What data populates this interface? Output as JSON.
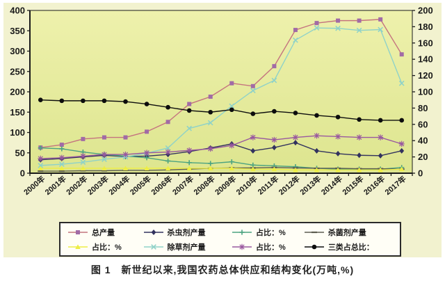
{
  "figure": {
    "caption": "图 1　新世纪以来,我国农药总体供应和结构变化(万吨,%)"
  },
  "chart_data": {
    "type": "line",
    "title": "",
    "categories": [
      "2000年",
      "2001年",
      "2002年",
      "2003年",
      "2004年",
      "2005年",
      "2006年",
      "2007年",
      "2008年",
      "2009年",
      "2010年",
      "2011年",
      "2012年",
      "2013年",
      "2014年",
      "2015年",
      "2016年",
      "2017年"
    ],
    "left_axis": {
      "label": "万吨",
      "min": 0,
      "max": 400,
      "step": 50,
      "ticks": [
        0,
        50,
        100,
        150,
        200,
        250,
        300,
        350,
        400
      ]
    },
    "right_axis": {
      "label": "%",
      "min": 0,
      "max": 200,
      "step": 20,
      "ticks": [
        0,
        20,
        40,
        60,
        80,
        100,
        120,
        140,
        160,
        180,
        200
      ]
    },
    "legend": {
      "position": "bottom",
      "rows": 2,
      "columns": 4,
      "order": "row-major"
    },
    "grid": "off",
    "colors": {
      "plot_bg_top": "#eef1ac",
      "plot_bg_bottom": "#dde58f",
      "panel_bg": "#f2f2cf",
      "axis": "#1a1a1a"
    },
    "series": [
      {
        "name": "总产量",
        "marker": "square",
        "axis": "left",
        "color": "#c4737f",
        "marker_color": "#a16ba6",
        "values": [
          63,
          70,
          84,
          88,
          88,
          102,
          126,
          170,
          188,
          221,
          214,
          263,
          352,
          369,
          375,
          375,
          378,
          292
        ]
      },
      {
        "name": "杀虫剂产量",
        "marker": "diamond",
        "axis": "left",
        "color": "#32325e",
        "marker_color": "#32325e",
        "values": [
          33,
          36,
          40,
          44,
          41,
          42,
          46,
          53,
          62,
          72,
          55,
          63,
          75,
          55,
          48,
          44,
          43,
          55
        ]
      },
      {
        "name": "占比：%",
        "marker": "plus",
        "axis": "right",
        "color": "#4ba381",
        "marker_color": "#4ba381",
        "values": [
          31,
          30,
          26,
          23,
          21,
          19,
          15,
          13,
          12,
          14,
          10,
          9,
          8,
          6,
          5,
          5,
          5,
          7
        ]
      },
      {
        "name": "杀菌剂产量",
        "marker": "dash",
        "axis": "left",
        "color": "#5c5c50",
        "marker_color": "#5c5c50",
        "values": [
          5,
          5,
          6,
          6,
          7,
          7,
          8,
          10,
          12,
          13,
          13,
          14,
          13,
          12,
          12,
          11,
          11,
          10
        ]
      },
      {
        "name": "占比：%",
        "marker": "triangle",
        "axis": "right",
        "color": "#eded45",
        "marker_color": "#eded45",
        "values": [
          6,
          6,
          6,
          6,
          6,
          6,
          6,
          6,
          6,
          6,
          5,
          5,
          4,
          4,
          4,
          4,
          4,
          5
        ]
      },
      {
        "name": "除草剂产量",
        "marker": "x",
        "axis": "left",
        "color": "#8fd2c8",
        "marker_color": "#8fd2c8",
        "values": [
          19,
          22,
          27,
          34,
          40,
          49,
          62,
          110,
          124,
          165,
          203,
          228,
          327,
          357,
          356,
          351,
          353,
          221
        ]
      },
      {
        "name": "占比：%",
        "marker": "asterisk",
        "axis": "right",
        "color": "#99589f",
        "marker_color": "#99589f",
        "values": [
          18,
          19,
          21,
          23,
          23,
          25,
          26,
          28,
          30,
          34,
          44,
          41,
          44,
          46,
          45,
          44,
          44,
          36
        ]
      },
      {
        "name": "三类占总比：",
        "marker": "circle",
        "axis": "right",
        "color": "#0d0d0d",
        "marker_color": "#0d0d0d",
        "values": [
          90,
          89,
          89,
          89,
          88,
          85,
          81,
          77,
          75,
          78,
          73,
          76,
          74,
          71,
          69,
          66,
          65,
          65
        ]
      }
    ]
  }
}
